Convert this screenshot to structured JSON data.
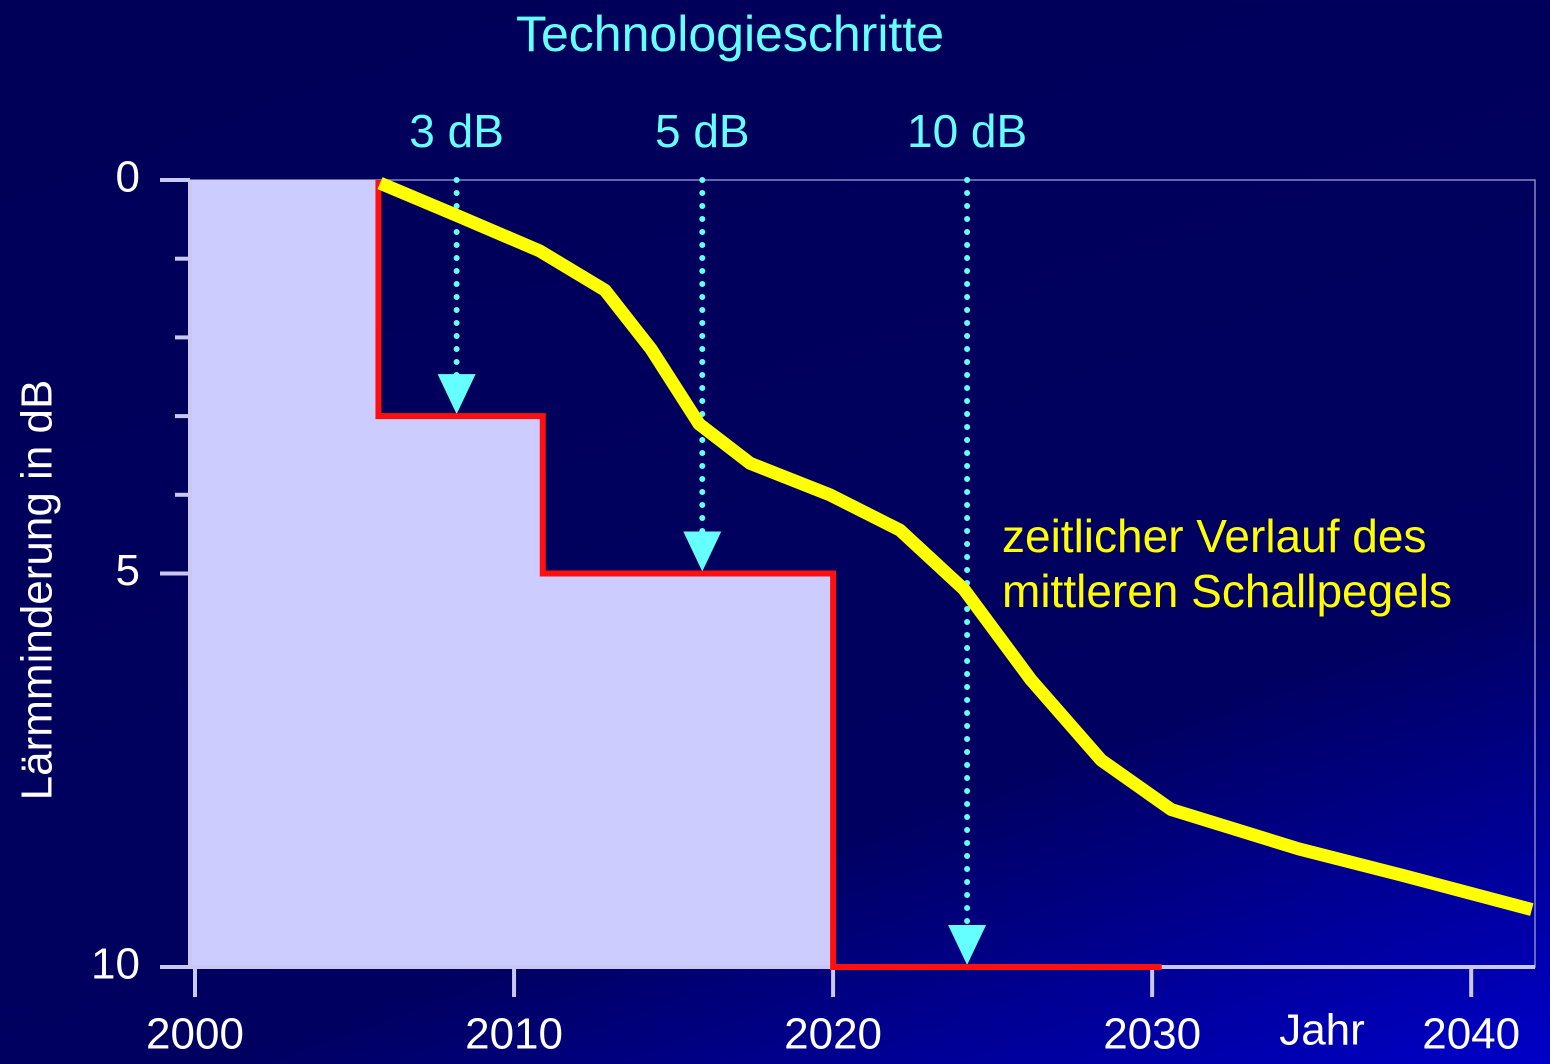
{
  "chart_data": {
    "type": "line",
    "title": "Technologieschritte",
    "x_label": "Jahr",
    "y_label": "Lärmminderung in dB",
    "xlim": [
      2000,
      2042
    ],
    "xticks": [
      2000,
      2010,
      2020,
      2030,
      2040
    ],
    "ylim": [
      0,
      10
    ],
    "y_inverted": true,
    "yticks": [
      0,
      5,
      10
    ],
    "y_minor_ticks": [
      1,
      2,
      3,
      4
    ],
    "steps": {
      "color": "#ff1010",
      "fill": "#ccccff",
      "x": [
        2005.75,
        2005.75,
        2010.9,
        2010.9,
        2020,
        2020,
        2030.3
      ],
      "values": [
        0,
        3,
        3,
        5,
        5,
        10,
        10
      ]
    },
    "series": [
      {
        "name": "zeitlicher Verlauf des mittleren Schallpegels",
        "name_lines": [
          "zeitlicher Verlauf des",
          "mittleren Schallpegels"
        ],
        "color": "#ffff00",
        "x": [
          2005.8,
          2008.2,
          2010.8,
          2012.85,
          2014.3,
          2015.8,
          2017.4,
          2019.9,
          2022.1,
          2024.1,
          2026.2,
          2028.4,
          2030.6,
          2034.6,
          2037.8,
          2041.9
        ],
        "values": [
          0.04,
          0.45,
          0.9,
          1.4,
          2.15,
          3.1,
          3.6,
          4.0,
          4.45,
          5.2,
          6.35,
          7.37,
          8.0,
          8.5,
          8.83,
          9.27
        ]
      }
    ],
    "arrows": {
      "color": "#66ffff",
      "labels": [
        "3 dB",
        "5 dB",
        "10 dB"
      ],
      "x": [
        2008.2,
        2015.9,
        2024.2
      ],
      "values": [
        3,
        5,
        10
      ]
    }
  }
}
